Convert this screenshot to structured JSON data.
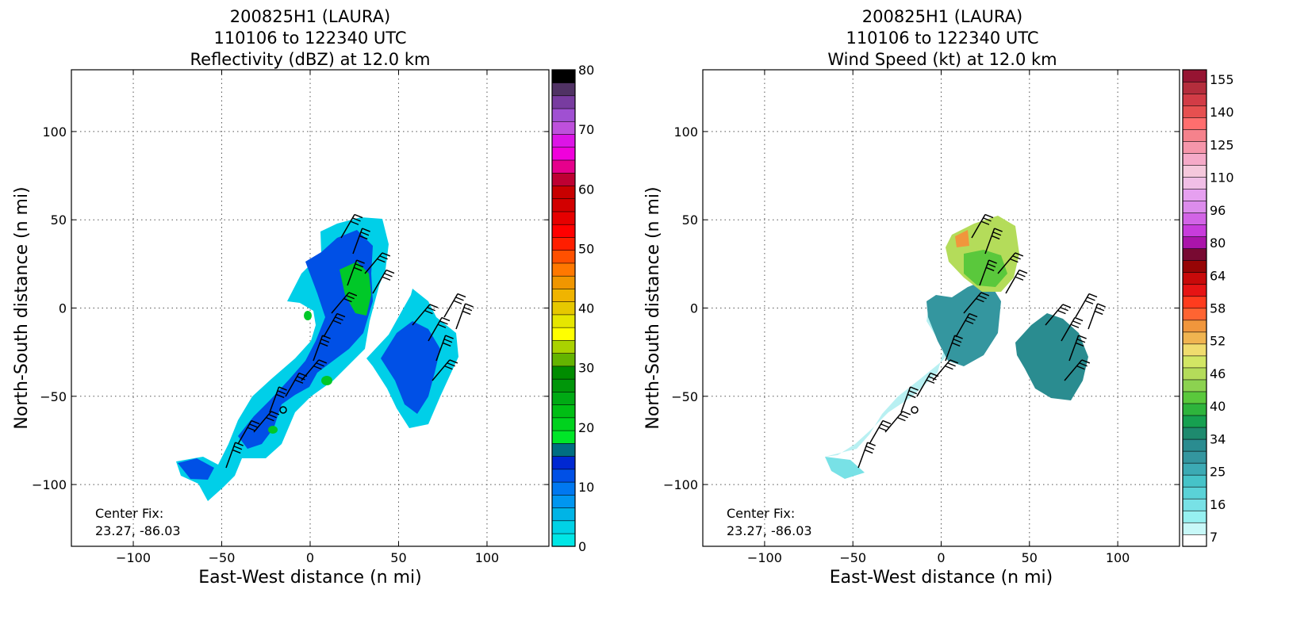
{
  "chart_data": [
    {
      "type": "heatmap",
      "title": [
        "200825H1 (LAURA)",
        "110106 to 122340 UTC",
        "Reflectivity (dBZ) at 12.0 km"
      ],
      "xlabel": "East-West distance (n mi)",
      "ylabel": "North-South distance (n mi)",
      "xlim": [
        -135,
        135
      ],
      "ylim": [
        -135,
        135
      ],
      "xticks": [
        "−100",
        "−50",
        "0",
        "50",
        "100"
      ],
      "yticks": [
        "−100",
        "−50",
        "0",
        "50",
        "100"
      ],
      "grid": true,
      "annotation": [
        "Center Fix:",
        "23.27, -86.03"
      ],
      "colorbar": {
        "ticks": [
          "0",
          "10",
          "20",
          "30",
          "40",
          "50",
          "60",
          "70",
          "80"
        ],
        "range": [
          0,
          80
        ],
        "colors": [
          "#00e6e6",
          "#00d2e6",
          "#00b4e6",
          "#0096f0",
          "#0078f0",
          "#0050e6",
          "#0028d2",
          "#006e82",
          "#00e628",
          "#00d21e",
          "#00be14",
          "#00aa14",
          "#00960a",
          "#008c00",
          "#64b400",
          "#aad200",
          "#ffff00",
          "#e6e600",
          "#e6c800",
          "#f0b400",
          "#f09600",
          "#ff7800",
          "#ff5000",
          "#ff1e00",
          "#ff0000",
          "#e60000",
          "#d20000",
          "#c80000",
          "#be0032",
          "#e6008c",
          "#f000dc",
          "#dc14e6",
          "#be50dc",
          "#a050d2",
          "#783ca0",
          "#503264",
          "#000000"
        ]
      }
    },
    {
      "type": "heatmap",
      "title": [
        "200825H1 (LAURA)",
        "110106 to 122340 UTC",
        "Wind Speed (kt) at 12.0 km"
      ],
      "xlabel": "East-West distance (n mi)",
      "ylabel": "North-South distance (n mi)",
      "xlim": [
        -135,
        135
      ],
      "ylim": [
        -135,
        135
      ],
      "xticks": [
        "−100",
        "−50",
        "0",
        "50",
        "100"
      ],
      "yticks": [
        "−100",
        "−50",
        "0",
        "50",
        "100"
      ],
      "grid": true,
      "annotation": [
        "Center Fix:",
        "23.27, -86.03"
      ],
      "colorbar": {
        "ticks": [
          "7",
          "16",
          "25",
          "34",
          "40",
          "46",
          "52",
          "58",
          "64",
          "80",
          "96",
          "110",
          "125",
          "140",
          "155"
        ],
        "range": [
          7,
          160
        ],
        "colors": [
          "#ffffff",
          "#c8f8f8",
          "#96f0f0",
          "#78e1e6",
          "#5ad2d7",
          "#46c3c8",
          "#3caab4",
          "#34969f",
          "#2a8c90",
          "#1e8a6e",
          "#16a050",
          "#2eb43c",
          "#5ac83c",
          "#8cd250",
          "#b4dc5a",
          "#d2e664",
          "#f0dc6e",
          "#f0b450",
          "#f0963c",
          "#ff6432",
          "#ff3c1e",
          "#e61414",
          "#c80a0a",
          "#960505",
          "#780a32",
          "#aa14aa",
          "#c83cdc",
          "#d264e6",
          "#dc8cec",
          "#e6a0f0",
          "#f0bee6",
          "#f5c8dc",
          "#f5aac8",
          "#f596aa",
          "#f5828c",
          "#ff6e6e",
          "#e65050",
          "#d23c46",
          "#b42d3c",
          "#961432"
        ]
      }
    }
  ]
}
